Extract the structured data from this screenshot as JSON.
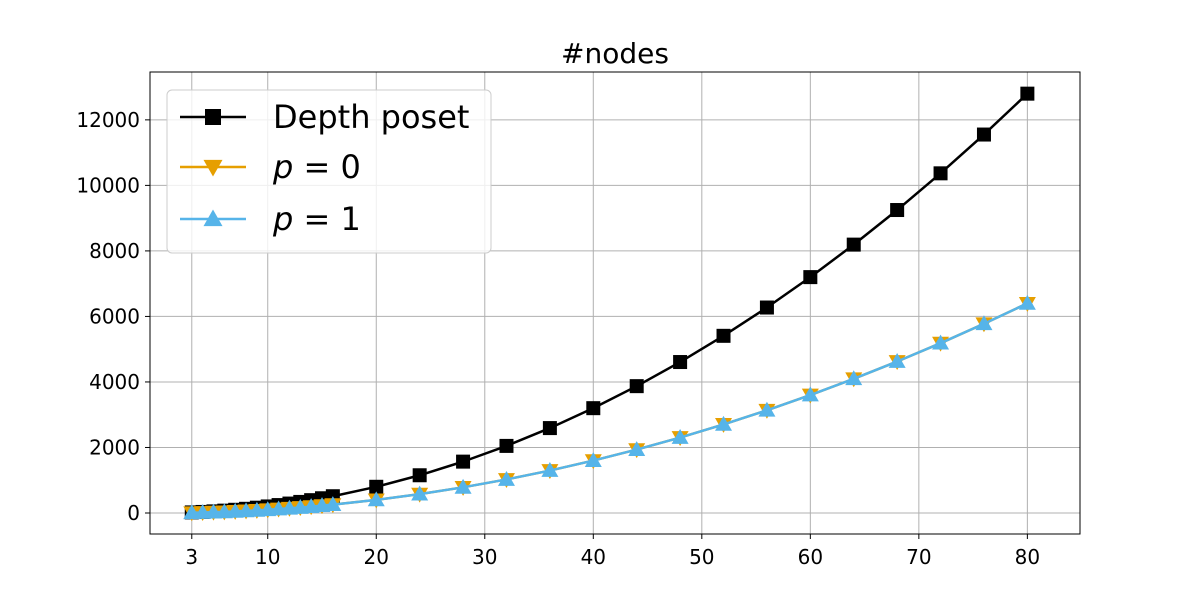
{
  "chart_data": {
    "type": "line",
    "title": "#nodes",
    "xlabel": "",
    "ylabel": "",
    "xlim": [
      -0.85,
      84.85
    ],
    "ylim": [
      -641,
      13461
    ],
    "xticks": [
      3,
      10,
      20,
      30,
      40,
      50,
      60,
      70,
      80
    ],
    "xtick_labels": [
      "3",
      "10",
      "20",
      "30",
      "40",
      "50",
      "60",
      "70",
      "80"
    ],
    "yticks": [
      0,
      2000,
      4000,
      6000,
      8000,
      10000,
      12000
    ],
    "ytick_labels": [
      "0",
      "2000",
      "4000",
      "6000",
      "8000",
      "10000",
      "12000"
    ],
    "grid": true,
    "legend_position": "top-left",
    "x": [
      3,
      4,
      5,
      6,
      7,
      8,
      9,
      10,
      11,
      12,
      13,
      14,
      15,
      16,
      20,
      24,
      28,
      32,
      36,
      40,
      44,
      48,
      52,
      56,
      60,
      64,
      68,
      72,
      76,
      80
    ],
    "series": [
      {
        "name": "Depth poset",
        "color": "#000000",
        "marker": "square",
        "values": [
          18,
          32,
          50,
          72,
          98,
          128,
          162,
          200,
          242,
          288,
          338,
          392,
          450,
          512,
          800,
          1152,
          1568,
          2048,
          2592,
          3200,
          3872,
          4608,
          5408,
          6272,
          7200,
          8192,
          9248,
          10368,
          11552,
          12800
        ]
      },
      {
        "name": "p = 0",
        "legend_var": "p",
        "legend_rel": "= 0",
        "color": "#E69F00",
        "marker": "triangle-down",
        "values": [
          9,
          16,
          25,
          36,
          49,
          64,
          81,
          100,
          121,
          144,
          169,
          196,
          225,
          256,
          400,
          576,
          784,
          1024,
          1296,
          1600,
          1936,
          2304,
          2704,
          3136,
          3600,
          4096,
          4624,
          5184,
          5776,
          6400
        ]
      },
      {
        "name": "p = 1",
        "legend_var": "p",
        "legend_rel": "= 1",
        "color": "#56B4E9",
        "marker": "triangle-up",
        "values": [
          9,
          16,
          25,
          36,
          49,
          64,
          81,
          100,
          121,
          144,
          169,
          196,
          225,
          256,
          400,
          576,
          784,
          1024,
          1296,
          1600,
          1936,
          2304,
          2704,
          3136,
          3600,
          4096,
          4624,
          5184,
          5776,
          6400
        ]
      }
    ]
  }
}
